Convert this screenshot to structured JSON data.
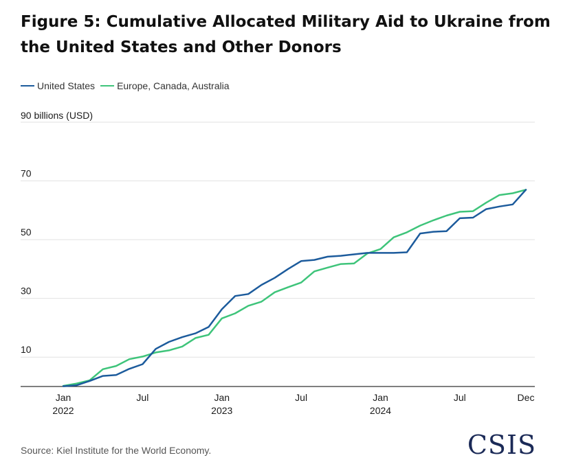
{
  "title": "Figure 5: Cumulative Allocated Military Aid to Ukraine from the United States and Other Donors",
  "source": "Source: Kiel Institute for the World Economy.",
  "logo_text": "CSIS",
  "colors": {
    "us": "#1c5b9c",
    "europe": "#3ec47a",
    "grid": "#e2e2e2",
    "axis": "#333333",
    "text": "#1a1a1a"
  },
  "chart_data": {
    "type": "line",
    "unit_label": "90 billions (USD)",
    "ylim": [
      0,
      90
    ],
    "yticks": [
      {
        "value": 90,
        "label": ""
      },
      {
        "value": 70,
        "label": "70"
      },
      {
        "value": 50,
        "label": "50"
      },
      {
        "value": 30,
        "label": "30"
      },
      {
        "value": 10,
        "label": "10"
      }
    ],
    "xlim": [
      "2022-01",
      "2024-12"
    ],
    "xticks": [
      {
        "month": "2022-01",
        "label": "Jan",
        "sublabel": "2022"
      },
      {
        "month": "2022-07",
        "label": "Jul",
        "sublabel": ""
      },
      {
        "month": "2023-01",
        "label": "Jan",
        "sublabel": "2023"
      },
      {
        "month": "2023-07",
        "label": "Jul",
        "sublabel": ""
      },
      {
        "month": "2024-01",
        "label": "Jan",
        "sublabel": "2024"
      },
      {
        "month": "2024-07",
        "label": "Jul",
        "sublabel": ""
      },
      {
        "month": "2024-12",
        "label": "Dec",
        "sublabel": ""
      }
    ],
    "x": [
      "2022-01",
      "2022-02",
      "2022-03",
      "2022-04",
      "2022-05",
      "2022-06",
      "2022-07",
      "2022-08",
      "2022-09",
      "2022-10",
      "2022-11",
      "2022-12",
      "2023-01",
      "2023-02",
      "2023-03",
      "2023-04",
      "2023-05",
      "2023-06",
      "2023-07",
      "2023-08",
      "2023-09",
      "2023-10",
      "2023-11",
      "2023-12",
      "2024-01",
      "2024-02",
      "2024-03",
      "2024-04",
      "2024-05",
      "2024-06",
      "2024-07",
      "2024-08",
      "2024-09",
      "2024-10",
      "2024-11",
      "2024-12"
    ],
    "series": [
      {
        "name": "United States",
        "color_key": "us",
        "values": [
          0.1,
          0.4,
          1.9,
          3.6,
          3.9,
          6.0,
          7.6,
          12.8,
          15.2,
          16.8,
          18.1,
          20.3,
          26.3,
          30.8,
          31.5,
          34.6,
          37.0,
          40.0,
          42.7,
          43.1,
          44.2,
          44.5,
          45.0,
          45.5,
          45.5,
          45.5,
          45.7,
          52.1,
          52.7,
          52.9,
          57.3,
          57.5,
          60.4,
          61.3,
          62.0,
          67.0
        ],
        "stroke_width": 2.5
      },
      {
        "name": "Europe, Canada, Australia",
        "color_key": "europe",
        "values": [
          0.2,
          1.0,
          2.1,
          5.9,
          7.0,
          9.3,
          10.2,
          11.6,
          12.3,
          13.6,
          16.5,
          17.6,
          23.2,
          24.9,
          27.5,
          28.9,
          32.1,
          33.8,
          35.4,
          39.2,
          40.5,
          41.7,
          41.9,
          45.3,
          46.8,
          50.8,
          52.5,
          54.8,
          56.6,
          58.2,
          59.5,
          59.7,
          62.6,
          65.2,
          65.8,
          67.0
        ],
        "stroke_width": 2.5
      }
    ]
  }
}
